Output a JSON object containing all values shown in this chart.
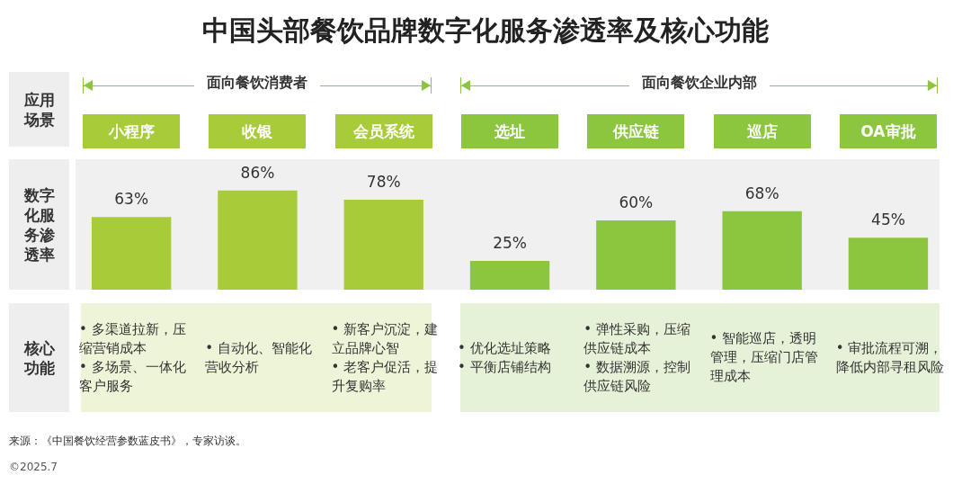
{
  "chart_data": {
    "type": "bar",
    "title": "中国头部餐饮品牌数字化服务渗透率及核心功能",
    "categories": [
      "小程序",
      "收银",
      "会员系统",
      "选址",
      "供应链",
      "巡店",
      "OA审批"
    ],
    "values": [
      63,
      86,
      78,
      25,
      60,
      68,
      45
    ],
    "colors": [
      "#a8cb3a",
      "#a8cb3a",
      "#a8cb3a",
      "#8cc63f",
      "#8cc63f",
      "#8cc63f",
      "#8cc63f"
    ],
    "value_labels": [
      "63%",
      "86%",
      "78%",
      "25%",
      "60%",
      "68%",
      "45%"
    ],
    "grid": false,
    "legend": false,
    "tick_labels": "x",
    "annotations": [
      "应用场景",
      "数字化服务渗透率",
      "核心功能",
      "面向餐饮消费者",
      "面向餐饮企业内部",
      "• 多渠道拉新，压缩营销成本\n• 多场景、一体化客户服务",
      "• 自动化、智能化营收分析",
      "• 新客户沉淀，建立品牌心智\n• 老客户促活，提升复购率",
      "• 优化选址策略\n• 平衡店铺结构",
      "• 弹性采购，压缩供应链成本\n• 数据溯源，控制供应链风险",
      "• 智能巡店，透明管理，压缩门店管理成本",
      "• 审批流程可溯，降低内部寻租风险",
      "来源：《中国餐饮经营参数蓝皮书》，专家访谈。",
      "©2025.7"
    ]
  }
}
